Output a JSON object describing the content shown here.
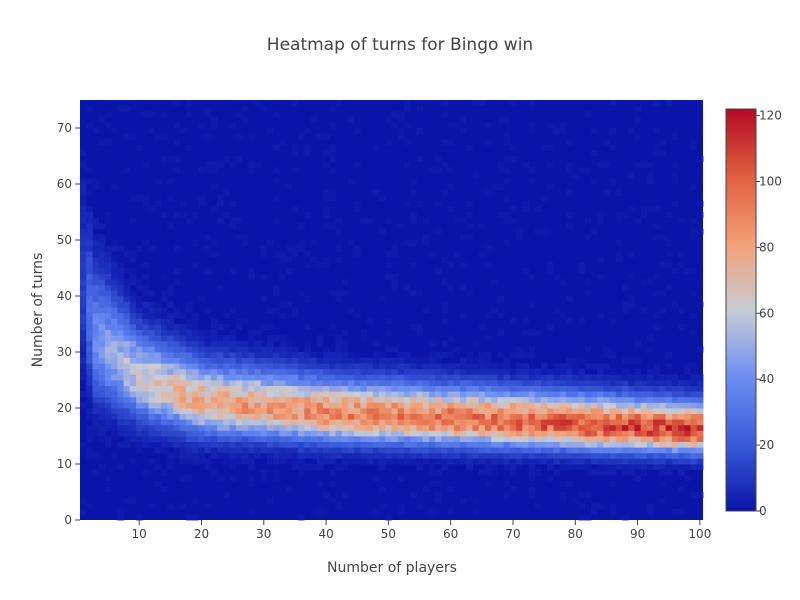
{
  "chart_data": {
    "type": "heatmap",
    "title": "Heatmap of turns for Bingo win",
    "xlabel": "Number of players",
    "ylabel": "Number of turns",
    "x": {
      "min": 1,
      "max": 100,
      "bins": 100
    },
    "y": {
      "min": 0,
      "max": 75,
      "bins": 75
    },
    "xlim": [
      0.5,
      100.5
    ],
    "ylim": [
      0,
      75
    ],
    "xticks": [
      10,
      20,
      30,
      40,
      50,
      60,
      70,
      80,
      90,
      100
    ],
    "yticks": [
      0,
      10,
      20,
      30,
      40,
      50,
      60,
      70
    ],
    "colorbar": {
      "min": 0,
      "max": 122,
      "ticks": [
        0,
        20,
        40,
        60,
        80,
        100,
        120
      ]
    },
    "colorscale": [
      [
        0.0,
        "#0a14a8"
      ],
      [
        0.16,
        "#3858d9"
      ],
      [
        0.33,
        "#6b8df2"
      ],
      [
        0.5,
        "#c8ccd6"
      ],
      [
        0.66,
        "#f2a27a"
      ],
      [
        0.83,
        "#e06040"
      ],
      [
        1.0,
        "#b40a24"
      ]
    ],
    "peak_curve": [
      {
        "x": 1,
        "peak_turns": 40,
        "peak_count": 12,
        "spread": 8.5
      },
      {
        "x": 3,
        "peak_turns": 32,
        "peak_count": 42,
        "spread": 6.5
      },
      {
        "x": 10,
        "peak_turns": 25,
        "peak_count": 62,
        "spread": 4.5
      },
      {
        "x": 20,
        "peak_turns": 21,
        "peak_count": 78,
        "spread": 3.7
      },
      {
        "x": 40,
        "peak_turns": 19,
        "peak_count": 88,
        "spread": 3.2
      },
      {
        "x": 60,
        "peak_turns": 18,
        "peak_count": 94,
        "spread": 3.0
      },
      {
        "x": 80,
        "peak_turns": 17,
        "peak_count": 104,
        "spread": 2.8
      },
      {
        "x": 100,
        "peak_turns": 16,
        "peak_count": 110,
        "spread": 2.6
      }
    ]
  }
}
